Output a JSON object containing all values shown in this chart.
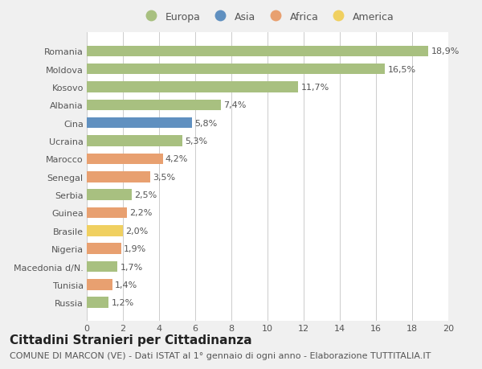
{
  "categories": [
    "Russia",
    "Tunisia",
    "Macedonia d/N.",
    "Nigeria",
    "Brasile",
    "Guinea",
    "Serbia",
    "Senegal",
    "Marocco",
    "Ucraina",
    "Cina",
    "Albania",
    "Kosovo",
    "Moldova",
    "Romania"
  ],
  "values": [
    1.2,
    1.4,
    1.7,
    1.9,
    2.0,
    2.2,
    2.5,
    3.5,
    4.2,
    5.3,
    5.8,
    7.4,
    11.7,
    16.5,
    18.9
  ],
  "labels": [
    "1,2%",
    "1,4%",
    "1,7%",
    "1,9%",
    "2,0%",
    "2,2%",
    "2,5%",
    "3,5%",
    "4,2%",
    "5,3%",
    "5,8%",
    "7,4%",
    "11,7%",
    "16,5%",
    "18,9%"
  ],
  "colors": [
    "#a8c080",
    "#e8a070",
    "#a8c080",
    "#e8a070",
    "#f0d060",
    "#e8a070",
    "#a8c080",
    "#e8a070",
    "#e8a070",
    "#a8c080",
    "#6090c0",
    "#a8c080",
    "#a8c080",
    "#a8c080",
    "#a8c080"
  ],
  "legend_labels": [
    "Europa",
    "Asia",
    "Africa",
    "America"
  ],
  "legend_colors": [
    "#a8c080",
    "#6090c0",
    "#e8a070",
    "#f0d060"
  ],
  "title": "Cittadini Stranieri per Cittadinanza",
  "subtitle": "COMUNE DI MARCON (VE) - Dati ISTAT al 1° gennaio di ogni anno - Elaborazione TUTTITALIA.IT",
  "xlim": [
    0,
    20
  ],
  "xticks": [
    0,
    2,
    4,
    6,
    8,
    10,
    12,
    14,
    16,
    18,
    20
  ],
  "bg_color": "#f0f0f0",
  "plot_bg_color": "#ffffff",
  "grid_color": "#cccccc",
  "bar_height": 0.6,
  "title_fontsize": 11,
  "subtitle_fontsize": 8,
  "label_fontsize": 8,
  "tick_fontsize": 8,
  "legend_fontsize": 9
}
